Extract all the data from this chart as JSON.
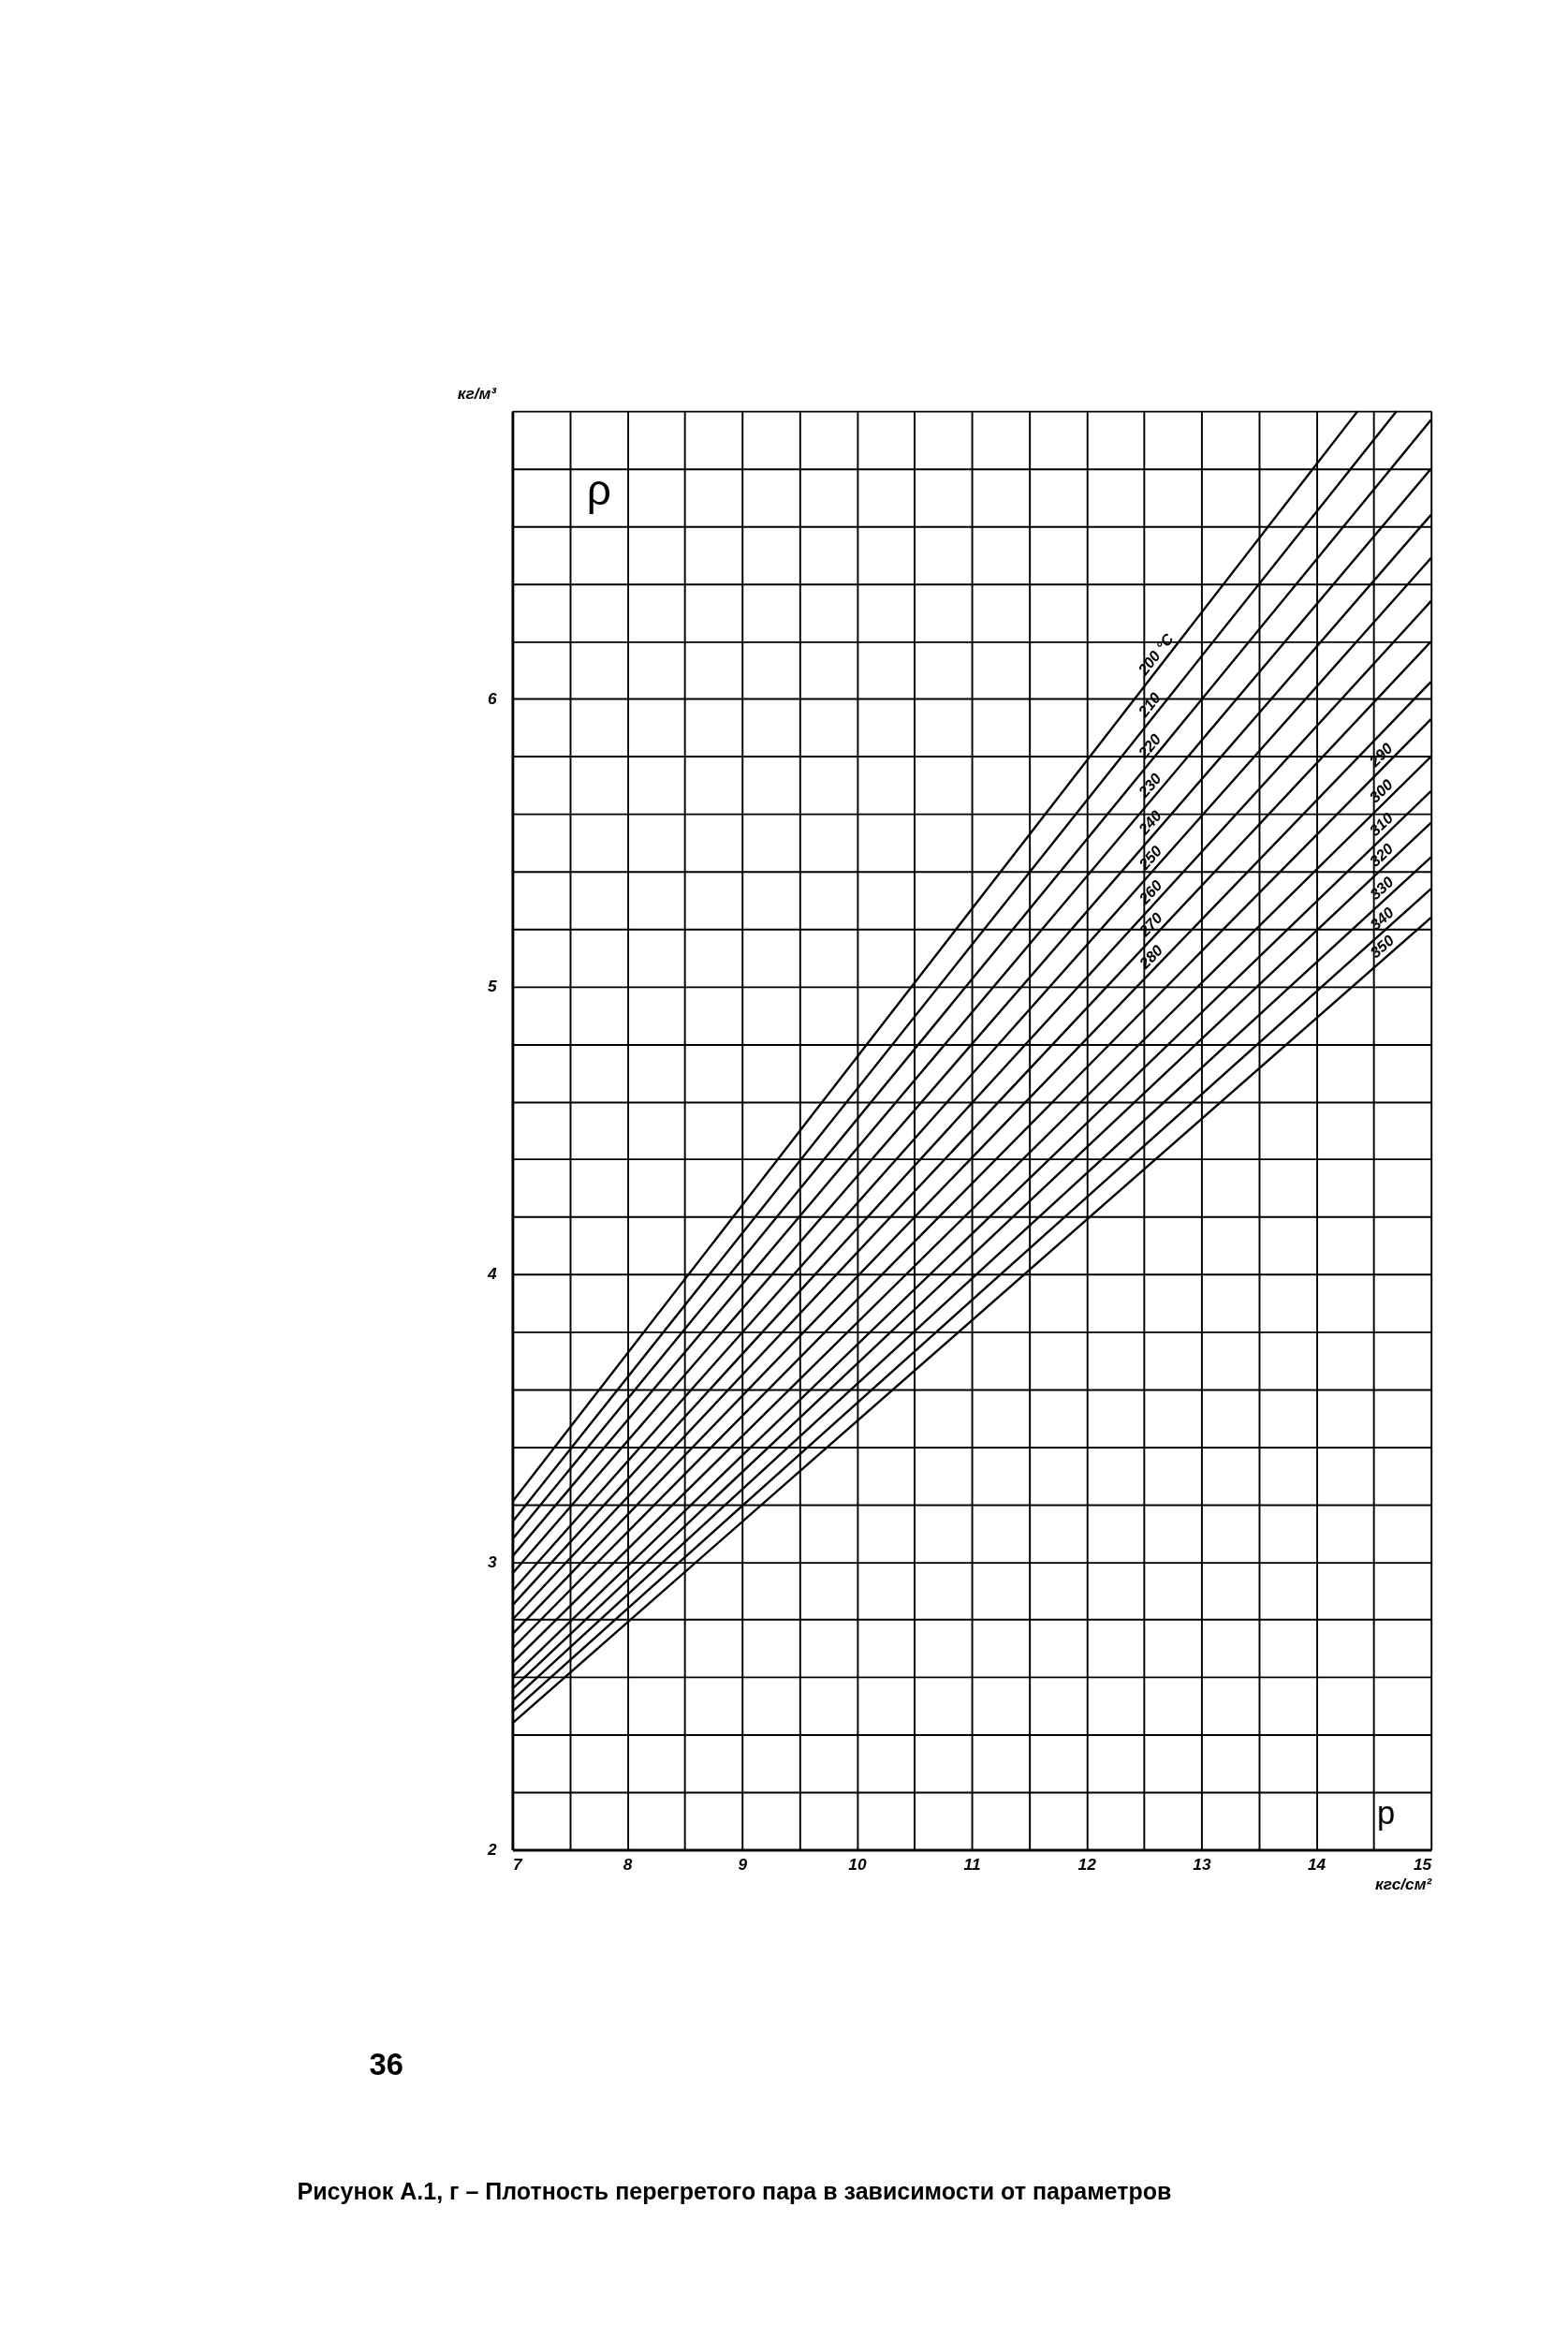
{
  "chart_data": {
    "type": "line",
    "title": "Рисунок А.1, г – Плотность перегретого пара в зависимости от параметров",
    "xlabel": "кгс/см²",
    "ylabel": "кг/м³",
    "annotations": [
      "ρ",
      "p",
      "36"
    ],
    "xlim": [
      7,
      15
    ],
    "ylim": [
      2,
      7
    ],
    "xticks": [
      7,
      {
        "value": 7.5,
        "label": null
      },
      8,
      {
        "value": 8.5,
        "label": null
      },
      9,
      {
        "value": 9.5,
        "label": null
      },
      10,
      {
        "value": 10.5,
        "label": null
      },
      11,
      {
        "value": 11.5,
        "label": null
      },
      12,
      {
        "value": 12.5,
        "label": null
      },
      13,
      {
        "value": 13.5,
        "label": null
      },
      14,
      {
        "value": 14.5,
        "label": null
      },
      15
    ],
    "yticks": [
      2,
      {
        "value": 2.2,
        "label": null
      },
      {
        "value": 2.4,
        "label": null
      },
      {
        "value": 2.6,
        "label": null
      },
      {
        "value": 2.8,
        "label": null
      },
      3,
      {
        "value": 3.2,
        "label": null
      },
      {
        "value": 3.4,
        "label": null
      },
      {
        "value": 3.6,
        "label": null
      },
      {
        "value": 3.8,
        "label": null
      },
      4,
      {
        "value": 4.2,
        "label": null
      },
      {
        "value": 4.4,
        "label": null
      },
      {
        "value": 4.6,
        "label": null
      },
      {
        "value": 4.8,
        "label": null
      },
      5,
      {
        "value": 5.2,
        "label": null
      },
      {
        "value": 5.4,
        "label": null
      },
      {
        "value": 5.6,
        "label": null
      },
      {
        "value": 5.8,
        "label": null
      },
      6,
      {
        "value": 6.2,
        "label": null
      },
      {
        "value": 6.4,
        "label": null
      },
      {
        "value": 6.6,
        "label": null
      },
      {
        "value": 6.8,
        "label": null
      },
      {
        "value": 7,
        "label": null
      }
    ],
    "grid": true,
    "legend": false,
    "marker": "none",
    "line_style": "solid",
    "series": [
      {
        "name": "200 °C",
        "color": "#000000",
        "x": [
          7,
          14.36
        ],
        "values": [
          3.21,
          7.0
        ]
      },
      {
        "name": "210",
        "color": "#000000",
        "x": [
          7,
          14.7
        ],
        "values": [
          3.14,
          7.0
        ]
      },
      {
        "name": "220",
        "color": "#000000",
        "x": [
          7,
          15
        ],
        "values": [
          3.08,
          6.97
        ]
      },
      {
        "name": "230",
        "color": "#000000",
        "x": [
          7,
          15
        ],
        "values": [
          3.02,
          6.8
        ]
      },
      {
        "name": "240",
        "color": "#000000",
        "x": [
          7,
          15
        ],
        "values": [
          2.96,
          6.64
        ]
      },
      {
        "name": "250",
        "color": "#000000",
        "x": [
          7,
          15
        ],
        "values": [
          2.9,
          6.49
        ]
      },
      {
        "name": "260",
        "color": "#000000",
        "x": [
          7,
          15
        ],
        "values": [
          2.85,
          6.34
        ]
      },
      {
        "name": "270",
        "color": "#000000",
        "x": [
          7,
          15
        ],
        "values": [
          2.8,
          6.2
        ]
      },
      {
        "name": "280",
        "color": "#000000",
        "x": [
          7,
          15
        ],
        "values": [
          2.75,
          6.06
        ]
      },
      {
        "name": "290",
        "color": "#000000",
        "x": [
          7,
          15
        ],
        "values": [
          2.7,
          5.93
        ]
      },
      {
        "name": "300",
        "color": "#000000",
        "x": [
          7,
          15
        ],
        "values": [
          2.65,
          5.8
        ]
      },
      {
        "name": "310",
        "color": "#000000",
        "x": [
          7,
          15
        ],
        "values": [
          2.6,
          5.68
        ]
      },
      {
        "name": "320",
        "color": "#000000",
        "x": [
          7,
          15
        ],
        "values": [
          2.56,
          5.57
        ]
      },
      {
        "name": "330",
        "color": "#000000",
        "x": [
          7,
          15
        ],
        "values": [
          2.52,
          5.45
        ]
      },
      {
        "name": "340",
        "color": "#000000",
        "x": [
          7,
          15
        ],
        "values": [
          2.48,
          5.34
        ]
      },
      {
        "name": "350",
        "color": "#000000",
        "x": [
          7,
          15
        ],
        "values": [
          2.44,
          5.24
        ]
      }
    ]
  }
}
